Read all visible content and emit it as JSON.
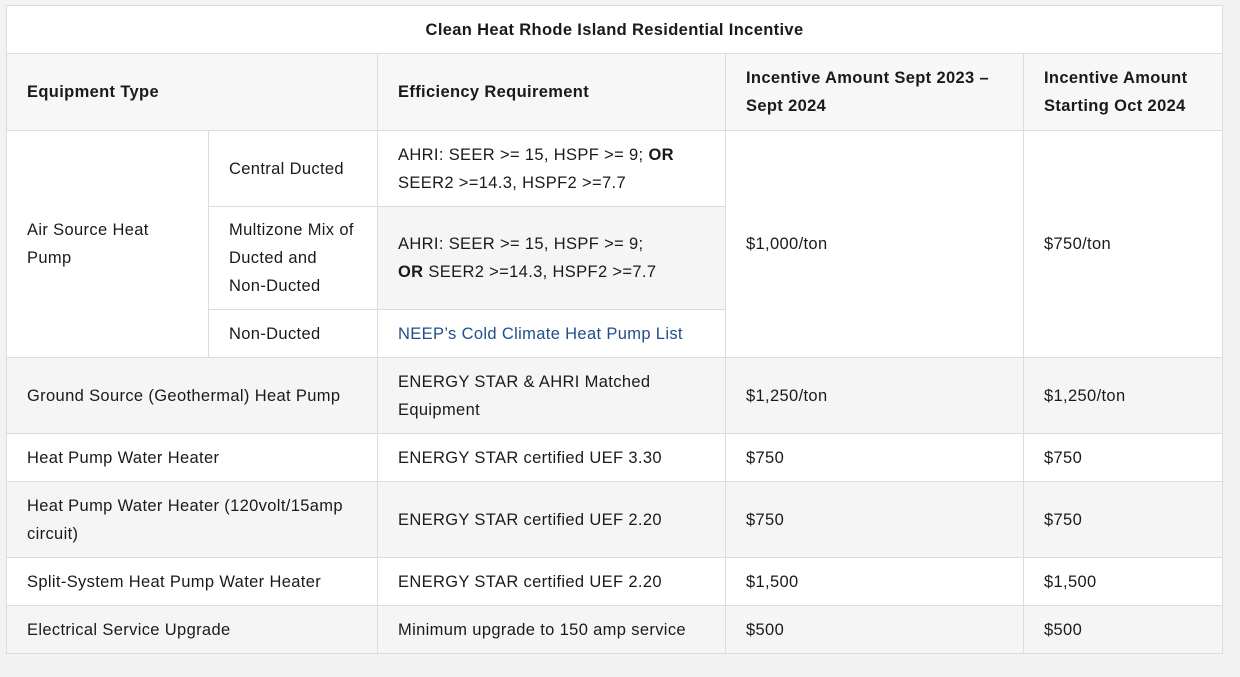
{
  "table": {
    "title": "Clean Heat Rhode Island Residential Incentive",
    "headers": {
      "equipment": "Equipment Type",
      "efficiency": "Efficiency Requirement",
      "incentive_2023": "Incentive Amount Sept 2023 – Sept 2024",
      "incentive_2024": "Incentive Amount Starting Oct 2024"
    },
    "air_source": {
      "label": "Air Source Heat Pump",
      "incentive_2023": "$1,000/ton",
      "incentive_2024": "$750/ton",
      "central": {
        "label": "Central Ducted",
        "req_a": "AHRI: SEER >= 15, HSPF >= 9;",
        "req_or": "OR",
        "req_b": "SEER2 >=14.3, HSPF2 >=7.7"
      },
      "multizone": {
        "label": "Multizone Mix of Ducted and Non-Ducted",
        "req_a": "AHRI: SEER >= 15, HSPF >= 9;",
        "req_or": "OR",
        "req_b": "SEER2 >=14.3, HSPF2 >=7.7"
      },
      "nonducted": {
        "label": "Non-Ducted",
        "link": "NEEP’s Cold Climate Heat Pump List"
      }
    },
    "rows": [
      {
        "equipment": "Ground Source (Geothermal) Heat Pump",
        "efficiency": "ENERGY STAR & AHRI Matched Equipment",
        "incentive_2023": "$1,250/ton",
        "incentive_2024": "$1,250/ton"
      },
      {
        "equipment": "Heat Pump Water Heater",
        "efficiency": "ENERGY STAR certified UEF 3.30",
        "incentive_2023": "$750",
        "incentive_2024": "$750"
      },
      {
        "equipment": "Heat Pump Water Heater (120volt/15amp circuit)",
        "efficiency": "ENERGY STAR certified UEF 2.20",
        "incentive_2023": "$750",
        "incentive_2024": "$750"
      },
      {
        "equipment": "Split-System Heat Pump Water Heater",
        "efficiency": "ENERGY STAR certified UEF 2.20",
        "incentive_2023": "$1,500",
        "incentive_2024": "$1,500"
      },
      {
        "equipment": "Electrical Service Upgrade",
        "efficiency": "Minimum upgrade to 150 amp service",
        "incentive_2023": "$500",
        "incentive_2024": "$500"
      }
    ]
  }
}
